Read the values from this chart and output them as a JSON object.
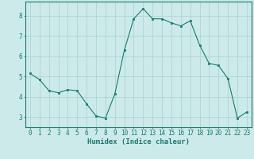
{
  "x": [
    0,
    1,
    2,
    3,
    4,
    5,
    6,
    7,
    8,
    9,
    10,
    11,
    12,
    13,
    14,
    15,
    16,
    17,
    18,
    19,
    20,
    21,
    22,
    23
  ],
  "y": [
    5.15,
    4.85,
    4.3,
    4.2,
    4.35,
    4.3,
    3.65,
    3.05,
    2.95,
    4.15,
    6.3,
    7.85,
    8.35,
    7.85,
    7.85,
    7.65,
    7.5,
    7.75,
    6.55,
    5.65,
    5.55,
    4.9,
    2.95,
    3.25
  ],
  "line_color": "#1a7a6e",
  "marker": "s",
  "marker_size": 2.0,
  "bg_color": "#cceaea",
  "grid_color": "#aacfcf",
  "xlabel": "Humidex (Indice chaleur)",
  "xlim": [
    -0.5,
    23.5
  ],
  "ylim": [
    2.5,
    8.7
  ],
  "yticks": [
    3,
    4,
    5,
    6,
    7,
    8
  ],
  "xticks": [
    0,
    1,
    2,
    3,
    4,
    5,
    6,
    7,
    8,
    9,
    10,
    11,
    12,
    13,
    14,
    15,
    16,
    17,
    18,
    19,
    20,
    21,
    22,
    23
  ],
  "axis_color": "#1a7a6e",
  "tick_color": "#1a7a6e",
  "label_fontsize": 6.5,
  "tick_fontsize": 5.5
}
